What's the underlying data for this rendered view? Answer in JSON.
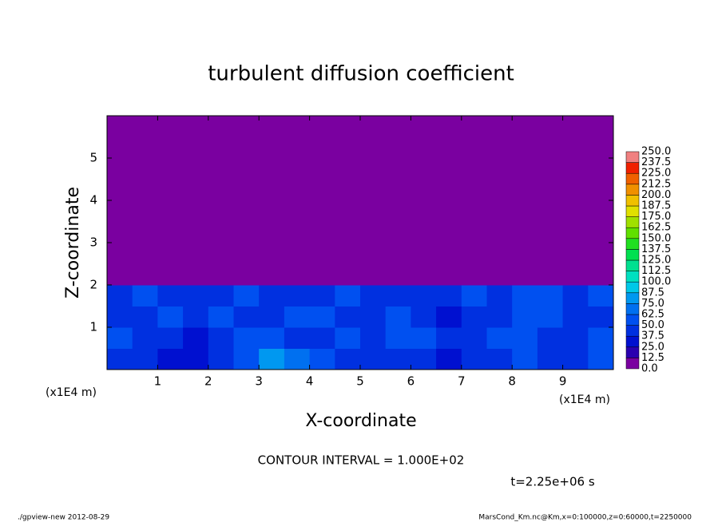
{
  "chart_data": {
    "type": "contour",
    "title": "turbulent diffusion coefficient",
    "xlabel": "X-coordinate",
    "ylabel": "Z-coordinate",
    "xunit": "(x1E4 m)",
    "yunit": "(x1E4 m)",
    "xlim": [
      0,
      10
    ],
    "ylim": [
      0,
      6
    ],
    "xticks": [
      1,
      2,
      3,
      4,
      5,
      6,
      7,
      8,
      9
    ],
    "yticks": [
      1,
      2,
      3,
      4,
      5
    ],
    "x_edges": [
      0,
      0.5,
      1,
      1.5,
      2,
      2.5,
      3,
      3.5,
      4,
      4.5,
      5,
      5.5,
      6,
      6.5,
      7,
      7.5,
      8,
      8.5,
      9,
      9.5,
      10
    ],
    "z_edges": [
      0,
      0.5,
      1,
      1.5,
      2,
      6
    ],
    "values": [
      [
        45,
        40,
        35,
        30,
        40,
        60,
        75,
        70,
        60,
        45,
        40,
        45,
        40,
        35,
        40,
        45,
        55,
        40,
        45,
        60
      ],
      [
        50,
        45,
        40,
        35,
        45,
        55,
        50,
        40,
        45,
        55,
        40,
        50,
        60,
        45,
        40,
        50,
        55,
        45,
        40,
        55
      ],
      [
        40,
        45,
        50,
        45,
        55,
        45,
        40,
        50,
        55,
        40,
        45,
        50,
        40,
        35,
        45,
        40,
        60,
        50,
        45,
        40
      ],
      [
        45,
        50,
        40,
        45,
        40,
        50,
        45,
        40,
        45,
        50,
        45,
        40,
        45,
        40,
        60,
        45,
        50,
        55,
        45,
        50
      ],
      [
        0,
        0,
        0,
        0,
        0,
        0,
        0,
        0,
        0,
        0,
        0,
        0,
        0,
        0,
        0,
        0,
        0,
        0,
        0,
        0
      ]
    ],
    "levels": [
      {
        "value": 0,
        "label": "0.0"
      },
      12.5,
      {
        "value": 25,
        "label": "25.0"
      },
      37.5,
      {
        "value": 50,
        "label": "50.0"
      },
      62.5,
      {
        "value": 75,
        "label": "75.0"
      },
      87.5,
      {
        "value": 100,
        "label": "100.0"
      },
      112.5,
      {
        "value": 125,
        "label": "125.0"
      },
      137.5,
      {
        "value": 150,
        "label": "150.0"
      },
      162.5,
      {
        "value": 175,
        "label": "175.0"
      },
      187.5,
      {
        "value": 200,
        "label": "200.0"
      },
      212.5,
      {
        "value": 225,
        "label": "225.0"
      },
      237.5,
      {
        "value": 250,
        "label": "250.0"
      }
    ],
    "colors": [
      "#7a00a0",
      "#2a00b0",
      "#0010d0",
      "#0030e0",
      "#0050f0",
      "#0070f0",
      "#0098f0",
      "#00c8e8",
      "#00e0c0",
      "#00e090",
      "#00e050",
      "#20e020",
      "#60e000",
      "#a0e000",
      "#e0e000",
      "#f0c000",
      "#f09000",
      "#f06000",
      "#f02000",
      "#f08080"
    ],
    "contour_interval": "CONTOUR INTERVAL = 1.000E+02",
    "time_label": "t=2.25e+06 s",
    "footer_left": "./gpview-new  2012-08-29",
    "footer_right": "MarsCond_Km.nc@Km,x=0:100000,z=0:60000,t=2250000"
  }
}
